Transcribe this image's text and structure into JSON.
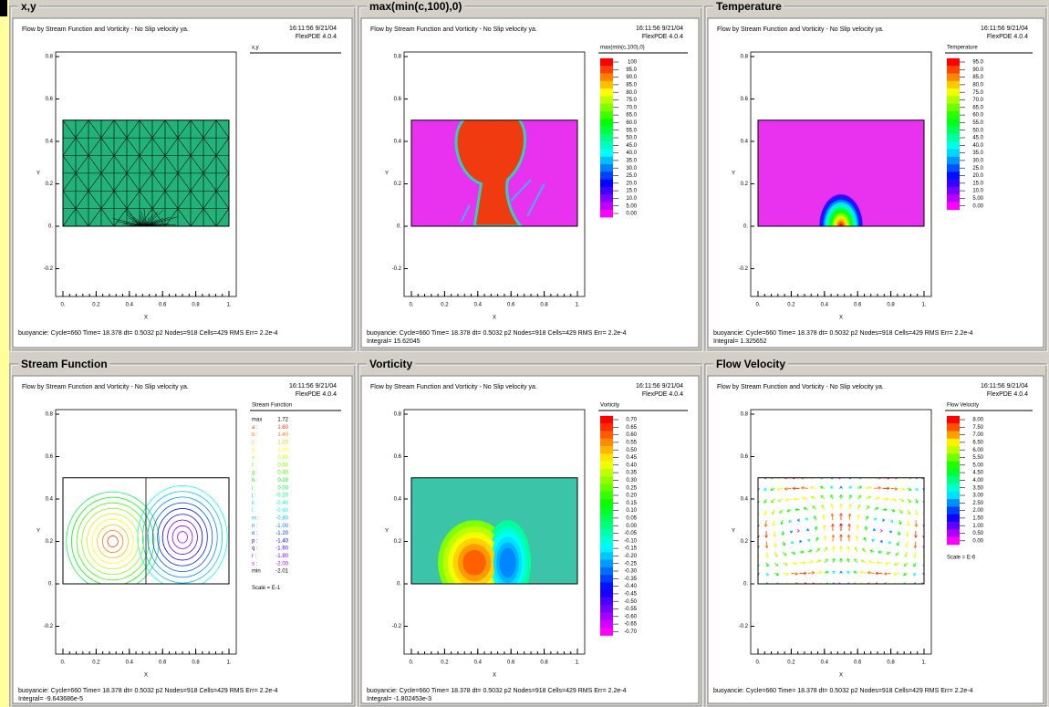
{
  "panels": [
    {
      "title": "x,y",
      "header": "Flow by Stream Function and Vorticity - No Slip velocity ya.",
      "timestamp": "16:11:56 9/21/04",
      "version": "FlexPDE 4.0.4",
      "legend": {
        "title": "x,y"
      },
      "footer": [
        "buoyancie: Cycle=660 Time= 18.378 dt= 0.5032 p2 Nodes=918 Cells=429 RMS Err= 2.2e-4"
      ]
    },
    {
      "title": "max(min(c,100),0)",
      "header": "Flow by Stream Function and Vorticity - No Slip velocity ya.",
      "timestamp": "16:11:56 9/21/04",
      "version": "FlexPDE 4.0.4",
      "legend": {
        "title": "max(min(c,100),0)",
        "labels": [
          "100",
          "95.0",
          "90.0",
          "85.0",
          "80.0",
          "75.0",
          "70.0",
          "65.0",
          "60.0",
          "55.0",
          "50.0",
          "45.0",
          "40.0",
          "35.0",
          "30.0",
          "25.0",
          "20.0",
          "15.0",
          "10.0",
          "5.00",
          "0.00"
        ]
      },
      "footer": [
        "buoyancie: Cycle=660 Time= 18.378 dt= 0.5032 p2 Nodes=918 Cells=429 RMS Err= 2.2e-4",
        "Integral= 15.62045"
      ]
    },
    {
      "title": "Temperature",
      "header": "Flow by Stream Function and Vorticity - No Slip velocity ya.",
      "timestamp": "16:11:56 9/21/04",
      "version": "FlexPDE 4.0.4",
      "legend": {
        "title": "Temperature",
        "labels": [
          "95.0",
          "90.0",
          "85.0",
          "80.0",
          "75.0",
          "70.0",
          "65.0",
          "60.0",
          "55.0",
          "50.0",
          "45.0",
          "40.0",
          "35.0",
          "30.0",
          "25.0",
          "20.0",
          "15.0",
          "10.0",
          "5.00",
          "0.00"
        ]
      },
      "footer": [
        "buoyancie: Cycle=660 Time= 18.378 dt= 0.5032 p2 Nodes=918 Cells=429 RMS Err= 2.2e-4",
        "Integral= 1.325652"
      ]
    },
    {
      "title": "Stream Function",
      "header": "Flow by Stream Function and Vorticity - No Slip velocity ya.",
      "timestamp": "16:11:56 9/21/04",
      "version": "FlexPDE 4.0.4",
      "legend": {
        "title": "Stream Function",
        "keys": [
          "max",
          "a :",
          "b :",
          "c :",
          "d :",
          "e :",
          "f :",
          "g :",
          "h :",
          "i :",
          "j :",
          "k :",
          "l :",
          "m :",
          "n :",
          "o :",
          "p :",
          "q :",
          "r :",
          "s :",
          "min"
        ],
        "labels": [
          "1.72",
          "1.60",
          "1.40",
          "1.20",
          "1.00",
          "0.80",
          "0.60",
          "0.40",
          "0.20",
          "0.00",
          "-0.20",
          "-0.40",
          "-0.60",
          "-0.80",
          "-1.00",
          "-1.20",
          "-1.40",
          "-1.60",
          "-1.80",
          "-2.00",
          "-2.01"
        ],
        "scale": "Scale = E-1"
      },
      "footer": [
        "buoyancie: Cycle=660 Time= 18.378 dt= 0.5032 p2 Nodes=918 Cells=429 RMS Err= 2.2e-4",
        "Integral= -9.643686e-5"
      ]
    },
    {
      "title": "Vorticity",
      "header": "Flow by Stream Function and Vorticity - No Slip velocity ya.",
      "timestamp": "16:11:56 9/21/04",
      "version": "FlexPDE 4.0.4",
      "legend": {
        "title": "Vorticity",
        "labels": [
          "0.70",
          "0.65",
          "0.60",
          "0.55",
          "0.50",
          "0.45",
          "0.40",
          "0.35",
          "0.30",
          "0.25",
          "0.20",
          "0.15",
          "0.10",
          "0.05",
          "0.00",
          "-0.05",
          "-0.10",
          "-0.15",
          "-0.20",
          "-0.25",
          "-0.30",
          "-0.35",
          "-0.40",
          "-0.45",
          "-0.50",
          "-0.55",
          "-0.60",
          "-0.65",
          "-0.70"
        ]
      },
      "footer": [
        "buoyancie: Cycle=660 Time= 18.378 dt= 0.5032 p2 Nodes=918 Cells=429 RMS Err= 2.2e-4",
        "Integral= -1.802453e-3"
      ]
    },
    {
      "title": "Flow Velocity",
      "header": "Flow by Stream Function and Vorticity - No Slip velocity ya.",
      "timestamp": "16:11:56 9/21/04",
      "version": "FlexPDE 4.0.4",
      "legend": {
        "title": "Flow Velocity",
        "labels": [
          "8.00",
          "7.50",
          "7.00",
          "6.50",
          "6.00",
          "5.50",
          "5.00",
          "4.50",
          "4.00",
          "3.50",
          "3.00",
          "2.50",
          "2.00",
          "1.50",
          "1.00",
          "0.50",
          "0.00"
        ],
        "scale": "Scale = E-6"
      },
      "footer": [
        "buoyancie: Cycle=660 Time= 18.378 dt= 0.5032 p2 Nodes=918 Cells=429 RMS Err= 2.2e-4"
      ]
    }
  ],
  "axes": {
    "xlabel": "X",
    "ylabel": "Y",
    "xticks": [
      "0.",
      "0.2",
      "0.4",
      "0.6",
      "0.8",
      "1."
    ],
    "yticks": [
      "0.8",
      "0.6",
      "0.4",
      "0.2",
      "0.",
      "-0.2"
    ]
  }
}
